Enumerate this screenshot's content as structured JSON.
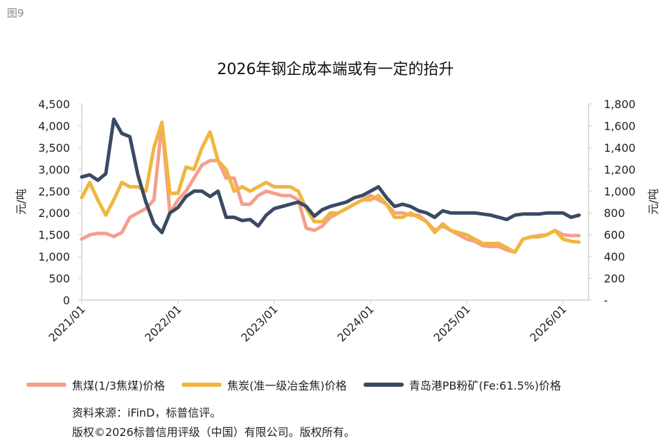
{
  "figure_label": "图9",
  "source": "资料来源：iFinD，标普信评。",
  "copyright": "版权©2026标普信用评级（中国）有限公司。版权所有。",
  "colors": {
    "coking_coal": "#F4A08C",
    "coke": "#F0B63E",
    "iron_ore": "#3A4A63",
    "axis": "#d0d0d0"
  },
  "chart_data": {
    "type": "line",
    "title": "2026年钢企成本端或有一定的抬升",
    "ylabel_left": "元/吨",
    "ylabel_right": "元/吨",
    "ylim_left": [
      0,
      4500
    ],
    "ylim_right": [
      0,
      1800
    ],
    "yticks_left": [
      "0",
      "500",
      "1,000",
      "1,500",
      "2,000",
      "2,500",
      "3,000",
      "3,500",
      "4,000",
      "4,500"
    ],
    "yticks_right": [
      "-",
      "200",
      "400",
      "600",
      "800",
      "1,000",
      "1,200",
      "1,400",
      "1,600",
      "1,800"
    ],
    "xticks": [
      "2021/01",
      "2022/01",
      "2023/01",
      "2024/01",
      "2025/01",
      "2026/01"
    ],
    "grid": false,
    "legend_position": "bottom",
    "x": [
      "2021-01",
      "2021-02",
      "2021-03",
      "2021-04",
      "2021-05",
      "2021-06",
      "2021-07",
      "2021-08",
      "2021-09",
      "2021-10",
      "2021-11",
      "2021-12",
      "2022-01",
      "2022-02",
      "2022-03",
      "2022-04",
      "2022-05",
      "2022-06",
      "2022-07",
      "2022-08",
      "2022-09",
      "2022-10",
      "2022-11",
      "2022-12",
      "2023-01",
      "2023-02",
      "2023-03",
      "2023-04",
      "2023-05",
      "2023-06",
      "2023-07",
      "2023-08",
      "2023-09",
      "2023-10",
      "2023-11",
      "2023-12",
      "2024-01",
      "2024-02",
      "2024-03",
      "2024-04",
      "2024-05",
      "2024-06",
      "2024-07",
      "2024-08",
      "2024-09",
      "2024-10",
      "2024-11",
      "2024-12",
      "2025-01",
      "2025-02",
      "2025-03",
      "2025-04",
      "2025-05",
      "2025-06",
      "2025-07",
      "2025-08",
      "2025-09",
      "2025-10",
      "2025-11",
      "2025-12",
      "2026-01",
      "2026-02",
      "2026-03"
    ],
    "series": [
      {
        "name": "焦煤(1/3焦煤)价格",
        "axis": "left",
        "color": "#F4A08C",
        "values": [
          1400,
          1500,
          1530,
          1530,
          1460,
          1550,
          1900,
          2000,
          2100,
          2300,
          4050,
          2000,
          2300,
          2500,
          2800,
          3100,
          3200,
          3200,
          2800,
          2800,
          2200,
          2200,
          2400,
          2500,
          2450,
          2400,
          2400,
          2300,
          1650,
          1600,
          1700,
          1900,
          2000,
          2100,
          2200,
          2300,
          2400,
          2300,
          2200,
          2000,
          2000,
          1950,
          1950,
          1800,
          1600,
          1700,
          1600,
          1500,
          1400,
          1350,
          1250,
          1230,
          1230,
          1150,
          1100,
          1400,
          1450,
          1480,
          1500,
          1600,
          1500,
          1480,
          1480
        ]
      },
      {
        "name": "焦炭(准一级冶金焦)价格",
        "axis": "left",
        "color": "#F0B63E",
        "values": [
          2350,
          2700,
          2300,
          1950,
          2300,
          2700,
          2600,
          2600,
          2500,
          3500,
          4080,
          2450,
          2450,
          3050,
          3000,
          3500,
          3860,
          3200,
          3000,
          2500,
          2600,
          2500,
          2600,
          2700,
          2600,
          2600,
          2600,
          2500,
          2100,
          1800,
          1800,
          2000,
          2000,
          2100,
          2200,
          2300,
          2300,
          2400,
          2200,
          1900,
          1900,
          2000,
          1900,
          1800,
          1550,
          1750,
          1600,
          1550,
          1500,
          1400,
          1300,
          1300,
          1300,
          1200,
          1100,
          1400,
          1450,
          1450,
          1500,
          1600,
          1400,
          1350,
          1330
        ]
      },
      {
        "name": "青岛港PB粉矿(Fe:61.5%)价格",
        "axis": "right",
        "color": "#3A4A63",
        "values": [
          1130,
          1150,
          1100,
          1160,
          1660,
          1530,
          1500,
          1150,
          900,
          700,
          620,
          800,
          850,
          950,
          1000,
          1000,
          950,
          1000,
          760,
          760,
          730,
          740,
          680,
          780,
          840,
          860,
          880,
          900,
          860,
          770,
          830,
          860,
          880,
          900,
          940,
          960,
          1000,
          1040,
          940,
          860,
          880,
          860,
          820,
          800,
          760,
          820,
          800,
          800,
          800,
          800,
          790,
          780,
          760,
          740,
          780,
          790,
          790,
          790,
          800,
          800,
          800,
          760,
          780
        ]
      }
    ]
  }
}
